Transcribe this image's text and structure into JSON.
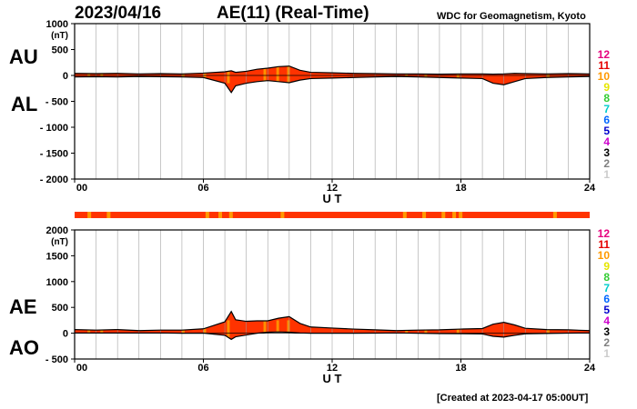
{
  "header": {
    "date": "2023/04/16",
    "title": "AE(11) (Real-Time)",
    "source": "WDC for Geomagnetism, Kyoto",
    "created": "[Created at 2023-04-17 05:00UT]"
  },
  "station_legend": {
    "labels": [
      "12",
      "11",
      "10",
      "9",
      "8",
      "7",
      "6",
      "5",
      "4",
      "3",
      "2",
      "1"
    ],
    "colors": [
      "#e6007e",
      "#e60000",
      "#ff9900",
      "#e6e600",
      "#33cc33",
      "#00cccc",
      "#0066ff",
      "#0000cc",
      "#cc00cc",
      "#000000",
      "#808080",
      "#cccccc"
    ]
  },
  "colors": {
    "fill_main": "#ff3300",
    "fill_alt": "#ff9900",
    "grid": "#999999"
  },
  "chart_data": [
    {
      "type": "area",
      "panel": "AU/AL",
      "series": [
        {
          "name": "AU",
          "x": [
            0,
            1,
            2,
            3,
            4,
            5,
            6,
            7,
            7.3,
            7.5,
            8,
            8.5,
            9,
            9.5,
            10,
            10.5,
            11,
            12,
            13,
            14,
            15,
            16,
            17,
            18,
            19,
            19.5,
            20,
            20.5,
            21,
            22,
            23,
            24
          ],
          "values": [
            40,
            35,
            40,
            30,
            35,
            30,
            45,
            70,
            90,
            60,
            80,
            120,
            140,
            170,
            180,
            100,
            60,
            50,
            40,
            35,
            30,
            30,
            25,
            30,
            30,
            25,
            30,
            40,
            35,
            30,
            35,
            30
          ]
        },
        {
          "name": "AL",
          "x": [
            0,
            1,
            2,
            3,
            4,
            5,
            6,
            7,
            7.3,
            7.5,
            8,
            8.5,
            9,
            9.5,
            10,
            10.5,
            11,
            12,
            13,
            14,
            15,
            16,
            17,
            18,
            19,
            19.5,
            20,
            20.5,
            21,
            22,
            23,
            24
          ],
          "values": [
            -30,
            -25,
            -30,
            -20,
            -25,
            -30,
            -40,
            -150,
            -330,
            -200,
            -150,
            -120,
            -100,
            -120,
            -140,
            -90,
            -60,
            -50,
            -40,
            -30,
            -20,
            -30,
            -40,
            -50,
            -60,
            -150,
            -180,
            -120,
            -60,
            -40,
            -30,
            -20
          ]
        }
      ],
      "ylabel": "(nT)",
      "ylim": [
        -2000,
        1000
      ],
      "yticks": [
        "1000",
        "500",
        "0",
        "- 500",
        "- 1000",
        "- 1500",
        "- 2000"
      ],
      "labels": [
        "AU",
        "AL"
      ],
      "xlim": [
        0,
        24
      ],
      "xticks": [
        "00",
        "06",
        "12",
        "18",
        "24"
      ],
      "xlabel": "U T",
      "grid": true
    },
    {
      "type": "area",
      "panel": "AE/AO",
      "series": [
        {
          "name": "AE",
          "x": [
            0,
            1,
            2,
            3,
            4,
            5,
            6,
            7,
            7.3,
            7.5,
            8,
            8.5,
            9,
            9.5,
            10,
            10.5,
            11,
            12,
            13,
            14,
            15,
            16,
            17,
            18,
            19,
            19.5,
            20,
            20.5,
            21,
            22,
            23,
            24
          ],
          "values": [
            70,
            60,
            70,
            50,
            60,
            60,
            85,
            220,
            420,
            260,
            230,
            240,
            240,
            290,
            320,
            190,
            120,
            100,
            80,
            65,
            50,
            60,
            65,
            80,
            90,
            175,
            210,
            160,
            95,
            70,
            65,
            50
          ]
        },
        {
          "name": "AO",
          "x": [
            0,
            1,
            2,
            3,
            4,
            5,
            6,
            7,
            7.3,
            7.5,
            8,
            8.5,
            9,
            9.5,
            10,
            10.5,
            11,
            12,
            13,
            14,
            15,
            16,
            17,
            18,
            19,
            19.5,
            20,
            20.5,
            21,
            22,
            23,
            24
          ],
          "values": [
            5,
            5,
            5,
            5,
            5,
            0,
            2,
            -40,
            -120,
            -70,
            -35,
            0,
            20,
            25,
            20,
            5,
            0,
            0,
            0,
            2,
            5,
            0,
            -8,
            -10,
            -15,
            -60,
            -75,
            -40,
            -12,
            -5,
            2,
            5
          ]
        }
      ],
      "ylabel": "(nT)",
      "ylim": [
        -500,
        2000
      ],
      "yticks": [
        "2000",
        "1500",
        "1000",
        "500",
        "0",
        "- 500"
      ],
      "labels": [
        "AE",
        "AO"
      ],
      "xlim": [
        0,
        24
      ],
      "xticks": [
        "00",
        "06",
        "12",
        "18",
        "24"
      ],
      "xlabel": "U T",
      "grid": true
    }
  ]
}
